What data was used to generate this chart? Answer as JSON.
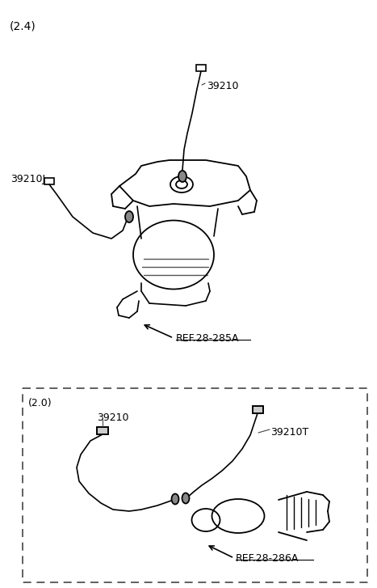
{
  "bg_color": "#ffffff",
  "line_color": "#000000",
  "gray_line": "#888888",
  "light_gray": "#aaaaaa",
  "fig_width": 4.67,
  "fig_height": 7.27,
  "dpi": 100,
  "title_24": "(2.4)",
  "title_20": "(2.0)",
  "label_39210": "39210",
  "label_39210J": "39210J",
  "label_39210T": "39210T",
  "label_ref285": "REF.28-285A",
  "label_ref286": "REF.28-286A"
}
